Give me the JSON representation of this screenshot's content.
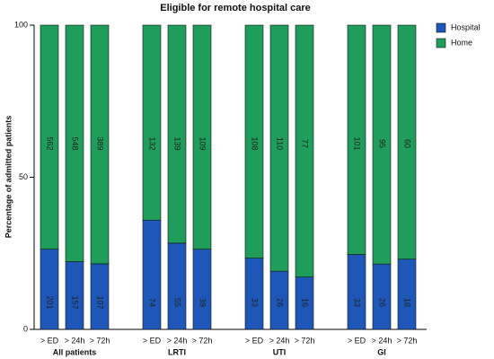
{
  "chart_data": {
    "type": "stacked_percent_bar",
    "title": "Eligible for remote hospital care",
    "y_label": "Percentage of admitted patients",
    "categories": [
      "> ED",
      "> 24h",
      "> 72h",
      "> ED",
      "> 24h",
      "> 72h",
      "> ED",
      "> 24h",
      "> 72h",
      "> ED",
      "> 24h",
      "> 72h"
    ],
    "groups": [
      "All patients",
      "LRTI",
      "UTI",
      "GI"
    ],
    "series": [
      {
        "name": "Hospital",
        "color": "#1f57b8",
        "values": [
          201,
          157,
          107,
          74,
          55,
          39,
          33,
          26,
          16,
          33,
          26,
          18
        ]
      },
      {
        "name": "Home",
        "color": "#1e9e5a",
        "values": [
          562,
          548,
          389,
          132,
          139,
          109,
          108,
          110,
          77,
          101,
          95,
          60
        ]
      }
    ],
    "ylim": [
      0,
      100
    ],
    "yticks": [
      0,
      50,
      100
    ],
    "legend": "top-right"
  }
}
